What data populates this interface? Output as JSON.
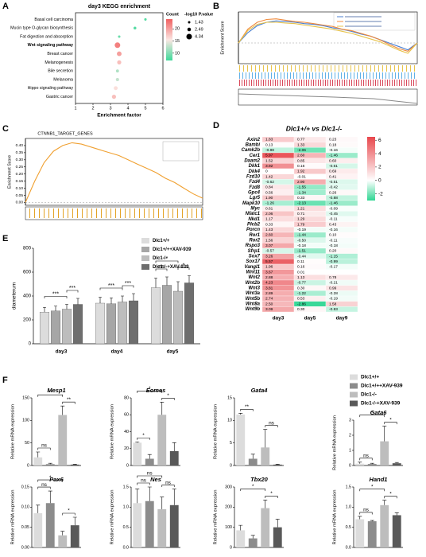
{
  "panel_labels": [
    "A",
    "B",
    "C",
    "D",
    "E",
    "F"
  ],
  "chart_data": [
    {
      "type": "dot",
      "title": "day3 KEGG enrichment",
      "x_label": "Enrichment factor",
      "categories": [
        "Basal cell carcinoma",
        "Mucin type O-glycan biosynthesis",
        "Fat digestion and absorption",
        "Wnt signaling pathway",
        "Breast cancer",
        "Melanogenesis",
        "Bile secretion",
        "Melanoma",
        "Hippo signaling pathway",
        "Gastric cancer"
      ],
      "values": [
        5.0,
        4.4,
        3.5,
        3.4,
        3.5,
        3.5,
        3.4,
        3.4,
        3.3,
        3.2
      ],
      "counts": [
        8,
        8,
        9,
        22,
        20,
        18,
        12,
        13,
        16,
        18
      ],
      "pvalues": [
        1.5,
        1.8,
        1.5,
        4.3,
        3.5,
        3.0,
        2.0,
        2.2,
        2.8,
        3.0
      ],
      "xlim": [
        1,
        6
      ],
      "xticks": [
        1,
        2,
        3,
        4,
        5,
        6
      ],
      "clim": [
        7,
        24
      ],
      "colormap": [
        "#3fd99a",
        "#fbe6e2",
        "#f06060"
      ],
      "color_legend": {
        "title": "Count",
        "ticks": [
          10,
          15,
          20
        ]
      },
      "size_legend": {
        "title": "-log10 P.value",
        "values": [
          1.43,
          2.49,
          4.34
        ]
      }
    },
    {
      "type": "gsea",
      "y_label": "Enrichment Score",
      "ylim": [
        -0.3,
        0.45
      ],
      "series": [
        {
          "color": "#4a7fd1",
          "values": [
            0,
            0.15,
            0.25,
            0.3,
            0.32,
            0.31,
            0.3,
            0.28,
            0.27,
            0.25,
            0.22,
            0.2,
            0.17,
            0.13,
            0.1,
            0.05,
            0,
            -0.05,
            -0.1,
            0
          ]
        },
        {
          "color": "#f08a3c",
          "values": [
            0,
            0.2,
            0.3,
            0.34,
            0.35,
            0.33,
            0.31,
            0.3,
            0.28,
            0.26,
            0.24,
            0.2,
            0.18,
            0.14,
            0.1,
            0.05,
            -0.02,
            -0.08,
            -0.12,
            0
          ]
        },
        {
          "color": "#e8c34a",
          "values": [
            0,
            0.18,
            0.27,
            0.3,
            0.3,
            0.29,
            0.28,
            0.26,
            0.24,
            0.22,
            0.2,
            0.17,
            0.14,
            0.1,
            0.06,
            0.02,
            -0.04,
            -0.1,
            -0.15,
            0
          ]
        }
      ]
    },
    {
      "type": "gsea",
      "title": "CTNNB1_TARGET_GENES",
      "y_label": "Enrichment Score",
      "ylim": [
        -0.02,
        0.45
      ],
      "yticks": [
        {
          "value": 0,
          "label": "0.00"
        },
        {
          "value": 0.05,
          "label": "0.05"
        },
        {
          "value": 0.1,
          "label": "0.10"
        },
        {
          "value": 0.15,
          "label": "0.15"
        },
        {
          "value": 0.2,
          "label": "0.20"
        },
        {
          "value": 0.25,
          "label": "0.25"
        },
        {
          "value": 0.3,
          "label": "0.30"
        },
        {
          "value": 0.35,
          "label": "0.35"
        },
        {
          "value": 0.4,
          "label": "0.40"
        }
      ],
      "series": [
        {
          "color": "#f0a030",
          "values": [
            0,
            0.15,
            0.28,
            0.36,
            0.4,
            0.42,
            0.41,
            0.39,
            0.37,
            0.35,
            0.33,
            0.3,
            0.27,
            0.24,
            0.21,
            0.17,
            0.14,
            0.1,
            0.06,
            0.03
          ]
        }
      ]
    },
    {
      "type": "heatmap",
      "title": "Dlc1+/+ vs Dlc1-/-",
      "columns": [
        "day3",
        "day5",
        "day9"
      ],
      "rows": [
        "Axin2",
        "Bambi",
        "Camk2b",
        "Cer1",
        "Daam2",
        "Dkk1",
        "Dkk4",
        "Fzd10",
        "Fzd4",
        "Fzd8",
        "Gpc4",
        "Lgr5",
        "Mapk10",
        "Myc",
        "Nfatc1",
        "Nkd1",
        "Plcb2",
        "Porcn",
        "Ror1",
        "Ror2",
        "Rspo3",
        "Sfrp1",
        "Sox7",
        "Sox17",
        "Vangl1",
        "Wnt11",
        "Wnt2",
        "Wnt2b",
        "Wnt3",
        "Wnt3a",
        "Wnt5b",
        "Wnt8a",
        "Wnt9b"
      ],
      "values": [
        [
          1.83,
          0.77,
          0.23
        ],
        [
          0.13,
          1.33,
          0.18
        ],
        [
          -0.88,
          -2.06,
          -0.16
        ],
        [
          5.97,
          2.6,
          -1.46
        ],
        [
          1.52,
          0.85,
          0.6
        ],
        [
          3.92,
          0.16,
          -0.61
        ],
        [
          0,
          1.92,
          0.69
        ],
        [
          1.42,
          -0.01,
          0.41
        ],
        [
          -0.62,
          2.9,
          -0.51
        ],
        [
          0.84,
          -1.55,
          -0.42
        ],
        [
          0.56,
          -1.34,
          0.26
        ],
        [
          1.9,
          0.33,
          -0.88
        ],
        [
          -1.26,
          -2.13,
          -1.46
        ],
        [
          0.61,
          1.21,
          -0.09
        ],
        [
          2.06,
          0.71,
          -0.45
        ],
        [
          1.17,
          1.29,
          -0.11
        ],
        [
          0.33,
          1.79,
          0.43
        ],
        [
          1.43,
          -0.19,
          -0.16
        ],
        [
          2.6,
          -1.44,
          0.1
        ],
        [
          1.56,
          -0.5,
          -0.11
        ],
        [
          3.07,
          -0.18,
          -0.18
        ],
        [
          -0.57,
          -1.51,
          0.2
        ],
        [
          3.26,
          -0.44,
          -1.15
        ],
        [
          5.57,
          0.11,
          -0.99
        ],
        [
          1.96,
          0.16,
          -0.17
        ],
        [
          3.67,
          0.01,
          null
        ],
        [
          2.88,
          1.13,
          0.78
        ],
        [
          4.23,
          -0.77,
          -0.21
        ],
        [
          3.81,
          0.3,
          0.99
        ],
        [
          2.89,
          -1.22,
          -0.28
        ],
        [
          2.74,
          0.53,
          -0.19
        ],
        [
          2.5,
          -2.86,
          1.58
        ],
        [
          3.09,
          0.3,
          -0.83
        ]
      ],
      "value_labels": [
        [
          "1.83",
          "0.77",
          "0.23"
        ],
        [
          "0.13",
          "1.33",
          "0.18"
        ],
        [
          "-0.88",
          "-2.06",
          "-0.16"
        ],
        [
          "5.97",
          "2.60",
          "-1.46"
        ],
        [
          "1.52",
          "0.85",
          "0.60"
        ],
        [
          "3.92",
          "0.16",
          "-0.61"
        ],
        [
          "0",
          "1.92",
          "0.69"
        ],
        [
          "1.42",
          "-0.01",
          "0.41"
        ],
        [
          "-0.62",
          "2.90",
          "-0.51"
        ],
        [
          "0.84",
          "-1.55",
          "-0.42"
        ],
        [
          "0.56",
          "-1.34",
          "0.26"
        ],
        [
          "1.90",
          "0.33",
          "-0.88"
        ],
        [
          "-1.26",
          "-2.13",
          "-1.46"
        ],
        [
          "0.61",
          "1.21",
          "-0.09"
        ],
        [
          "2.06",
          "0.71",
          "-0.45"
        ],
        [
          "1.17",
          "1.29",
          "-0.11"
        ],
        [
          "0.33",
          "1.79",
          "0.43"
        ],
        [
          "1.43",
          "-0.19",
          "-0.16"
        ],
        [
          "2.60",
          "-1.44",
          "0.10"
        ],
        [
          "1.56",
          "-0.50",
          "-0.11"
        ],
        [
          "3.07",
          "-0.18",
          "-0.18"
        ],
        [
          "-0.57",
          "-1.51",
          "0.20"
        ],
        [
          "3.26",
          "-0.44",
          "-1.15"
        ],
        [
          "5.57",
          "0.11",
          "-0.99"
        ],
        [
          "1.96",
          "0.16",
          "-0.17"
        ],
        [
          "3.67",
          "0.01",
          null
        ],
        [
          "2.88",
          "1.13",
          "0.78"
        ],
        [
          "4.23",
          "-0.77",
          "-0.21"
        ],
        [
          "3.81",
          "0.30",
          "0.99"
        ],
        [
          "2.89",
          "-1.22",
          "-0.28"
        ],
        [
          "2.74",
          "0.53",
          "-0.19"
        ],
        [
          "2.50",
          "-2.86",
          "1.58"
        ],
        [
          "3.09",
          "0.30",
          "-0.83"
        ]
      ],
      "clim": [
        -3,
        6.5
      ],
      "colormap": [
        "#2fd693",
        "#ffffff",
        "#e8474c"
      ],
      "colorbar_ticks": [
        6,
        4,
        2,
        0,
        -2
      ]
    },
    {
      "type": "bar",
      "y_label": "diameterum",
      "categories": [
        "day3",
        "day4",
        "day5"
      ],
      "ylim": [
        0,
        800
      ],
      "yticks": [
        0,
        200,
        400,
        600,
        800
      ],
      "series": [
        {
          "name": "Dlc1+/+",
          "color": "#dcdcdc",
          "values": [
            265,
            340,
            470
          ],
          "errors": [
            40,
            50,
            80
          ]
        },
        {
          "name": "Dlc1+/++XAV-939",
          "color": "#a6a6a6",
          "values": [
            275,
            335,
            490
          ],
          "errors": [
            40,
            50,
            70
          ]
        },
        {
          "name": "Dlc1-/-",
          "color": "#bdbdbd",
          "values": [
            290,
            350,
            440
          ],
          "errors": [
            40,
            50,
            80
          ]
        },
        {
          "name": "Dlc1-/-+XAV-939",
          "color": "#6e6e6e",
          "values": [
            330,
            360,
            510
          ],
          "errors": [
            50,
            60,
            60
          ]
        }
      ],
      "significance": [
        [
          "***",
          "***"
        ],
        [
          "***",
          "***"
        ],
        [
          "*",
          "ns",
          "*"
        ]
      ]
    },
    {
      "type": "legend",
      "series": [
        {
          "name": "Dlc1+/+",
          "color": "#dcdcdc"
        },
        {
          "name": "Dlc1+/++XAV-939",
          "color": "#8c8c8c"
        },
        {
          "name": "Dlc1-/-",
          "color": "#bdbdbd"
        },
        {
          "name": "Dlc1-/-+XAV-939",
          "color": "#595959"
        }
      ]
    },
    {
      "type": "bar",
      "title": "Mesp1",
      "y_label": "Relative mRNA expression",
      "values": [
        18,
        3,
        112,
        2
      ],
      "errors": [
        12,
        2,
        20,
        1
      ],
      "ylim": [
        0,
        150
      ],
      "yticks": [
        0,
        50,
        100,
        150
      ],
      "significance": [
        "ns",
        "**",
        "**"
      ]
    },
    {
      "type": "bar",
      "title": "Eomes",
      "y_label": "Relative mRNA expression",
      "values": [
        27,
        8,
        60,
        17
      ],
      "errors": [
        1,
        5,
        15,
        10
      ],
      "ylim": [
        0,
        80
      ],
      "yticks": [
        0,
        20,
        40,
        60,
        80
      ],
      "significance": [
        "*",
        "*",
        "*"
      ]
    },
    {
      "type": "bar",
      "title": "Gata4",
      "y_label": "Relative mRNA expression",
      "values": [
        11.3,
        1.5,
        4,
        0.2
      ],
      "errors": [
        0.3,
        1,
        4,
        0.1
      ],
      "ylim": [
        0,
        15
      ],
      "yticks": [
        0,
        5,
        10,
        15
      ],
      "significance": [
        "**",
        "ns"
      ]
    },
    {
      "type": "bar",
      "title": "Gata6",
      "y_label": "Relative mRNA expression",
      "values": [
        0.12,
        0.1,
        1.6,
        0.15
      ],
      "errors": [
        0.1,
        0.05,
        1,
        0.05
      ],
      "ylim": [
        0,
        3
      ],
      "yticks": [
        0,
        1,
        2,
        3
      ],
      "significance": [
        "ns",
        "*",
        "*"
      ]
    },
    {
      "type": "bar",
      "title": "Pax6",
      "y_label": "Relative mRNA expression",
      "values": [
        0.085,
        0.11,
        0.03,
        0.055
      ],
      "errors": [
        0.02,
        0.03,
        0.01,
        0.02
      ],
      "ylim": [
        0,
        0.15
      ],
      "yticks": [
        {
          "value": 0,
          "label": "0.00"
        },
        {
          "value": 0.05,
          "label": "0.05"
        },
        {
          "value": 0.1,
          "label": "0.10"
        },
        {
          "value": 0.15,
          "label": "0.15"
        }
      ],
      "significance": [
        "ns",
        "*",
        "*"
      ]
    },
    {
      "type": "bar",
      "title": "Nes",
      "y_label": "Relative mRNA expression",
      "values": [
        1.1,
        1.15,
        0.95,
        1.05
      ],
      "errors": [
        0.35,
        0.35,
        0.3,
        0.4
      ],
      "ylim": [
        0,
        1.5
      ],
      "yticks": [
        {
          "value": 0,
          "label": "0.0"
        },
        {
          "value": 0.5,
          "label": "0.5"
        },
        {
          "value": 1,
          "label": "1.0"
        },
        {
          "value": 1.5,
          "label": "1.5"
        }
      ],
      "significance": [
        "ns",
        "ns",
        "ns"
      ]
    },
    {
      "type": "bar",
      "title": "Tbx20",
      "y_label": "Relative mRNA expression",
      "values": [
        85,
        45,
        195,
        100
      ],
      "errors": [
        25,
        15,
        40,
        40
      ],
      "ylim": [
        0,
        300
      ],
      "yticks": [
        0,
        100,
        200,
        300
      ],
      "significance": [
        "*",
        "*"
      ]
    },
    {
      "type": "bar",
      "title": "Hand1",
      "y_label": "Relative mRNA expression",
      "values": [
        0.7,
        0.65,
        1.05,
        0.8
      ],
      "errors": [
        0.07,
        0.02,
        0.12,
        0.06
      ],
      "ylim": [
        0,
        1.5
      ],
      "yticks": [
        {
          "value": 0,
          "label": "0.0"
        },
        {
          "value": 0.5,
          "label": "0.5"
        },
        {
          "value": 1,
          "label": "1.0"
        },
        {
          "value": 1.5,
          "label": "1.5"
        }
      ],
      "significance": [
        "ns",
        "*",
        "*"
      ]
    }
  ]
}
